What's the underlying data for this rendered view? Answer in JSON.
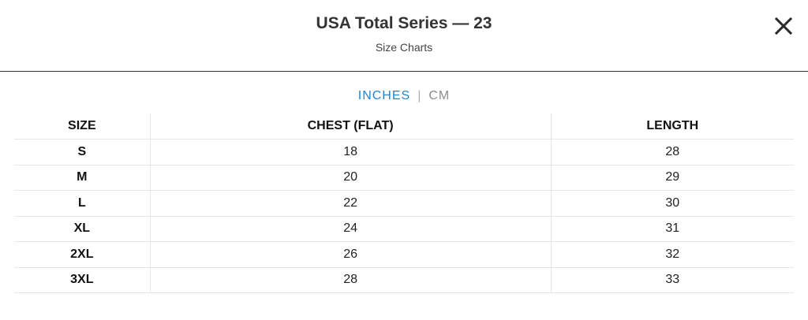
{
  "header": {
    "title": "USA Total Series — 23",
    "subtitle": "Size Charts",
    "close_icon": "close-icon"
  },
  "units": {
    "active": "INCHES",
    "separator": "|",
    "inactive": "CM"
  },
  "colors": {
    "accent": "#1f86d6",
    "inactive_unit": "#8d8d8d",
    "divider": "#333333",
    "grid": "#e6e6e6"
  },
  "table": {
    "headers": [
      "SIZE",
      "CHEST (FLAT)",
      "LENGTH"
    ],
    "rows": [
      [
        "S",
        "18",
        "28"
      ],
      [
        "M",
        "20",
        "29"
      ],
      [
        "L",
        "22",
        "30"
      ],
      [
        "XL",
        "24",
        "31"
      ],
      [
        "2XL",
        "26",
        "32"
      ],
      [
        "3XL",
        "28",
        "33"
      ]
    ]
  }
}
